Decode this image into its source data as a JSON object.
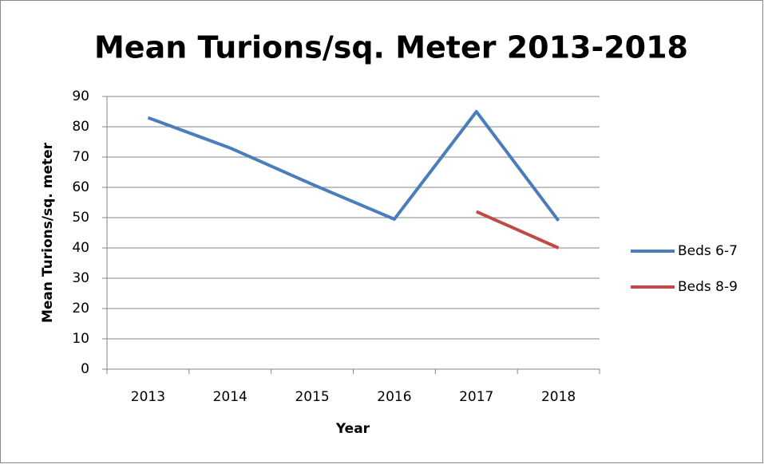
{
  "chart_data": {
    "type": "line",
    "title": "Mean Turions/sq. Meter 2013-2018",
    "x_label": "Year",
    "y_label": "Mean Turions/sq. meter",
    "categories": [
      "2013",
      "2014",
      "2015",
      "2016",
      "2017",
      "2018"
    ],
    "series": [
      {
        "name": "Beds 6-7",
        "color": "#4a7ebb",
        "values": [
          83,
          73,
          61,
          49.5,
          85,
          49
        ]
      },
      {
        "name": "Beds 8-9",
        "color": "#be4b48",
        "values": [
          null,
          null,
          null,
          null,
          52,
          40
        ]
      }
    ],
    "ylim": [
      0,
      90
    ],
    "yticks": [
      0,
      10,
      20,
      30,
      40,
      50,
      60,
      70,
      80,
      90
    ],
    "grid": true,
    "legend": "right"
  }
}
